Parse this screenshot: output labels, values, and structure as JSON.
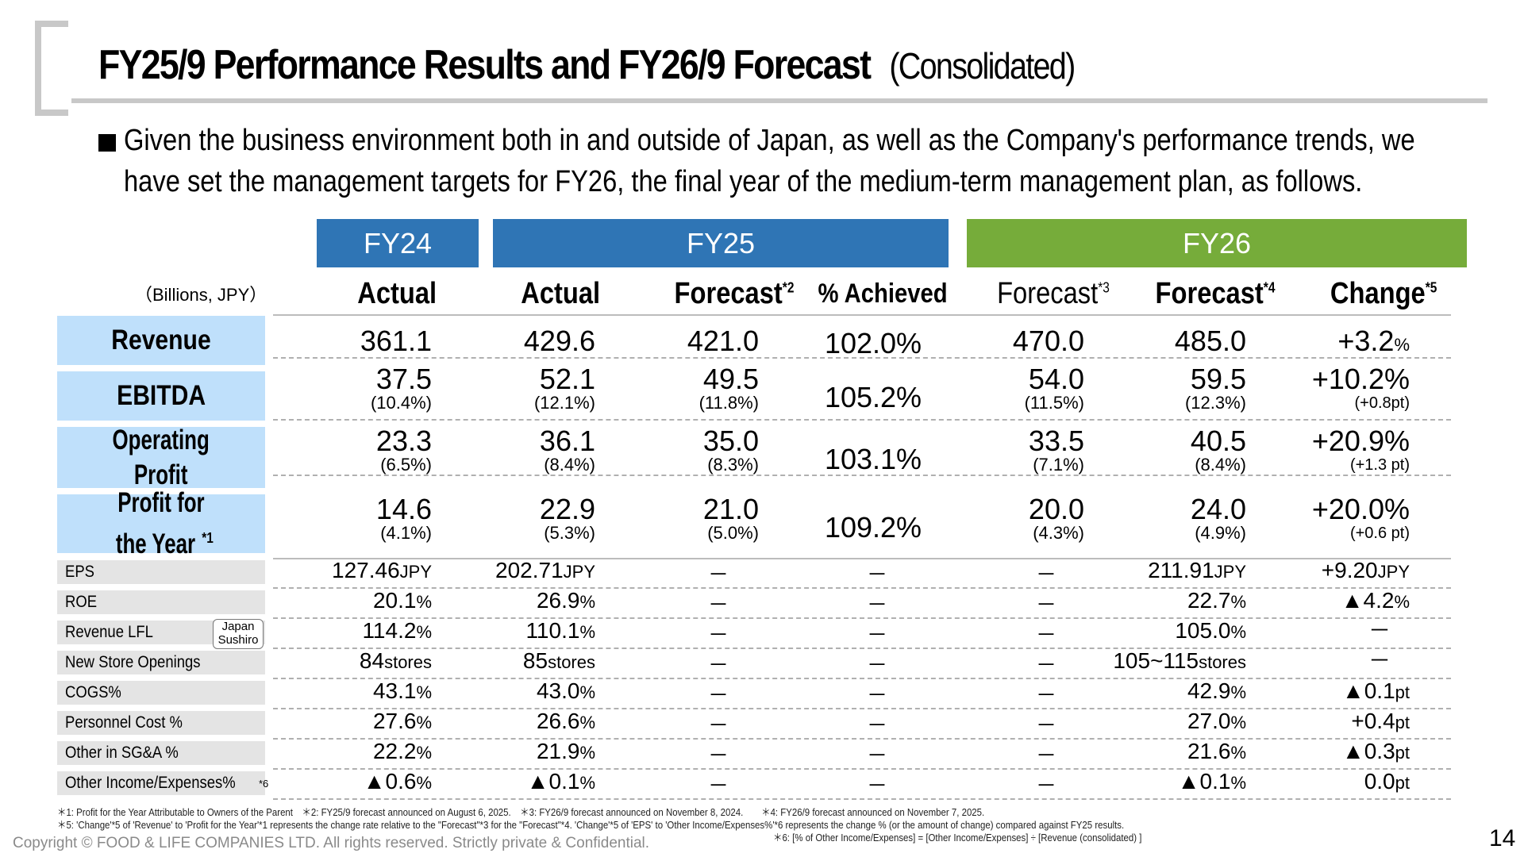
{
  "title": "FY25/9 Performance Results and FY26/9 Forecast",
  "title_sub": "(Consolidated)",
  "intro": {
    "line1": "Given the business environment both in and outside of Japan, as well as the Company's performance trends, we",
    "line2": "have set the management targets for FY26, the final year of the medium-term management plan, as follows."
  },
  "unit": "（Billions, JPY）",
  "colors": {
    "fy24": "#2f75b5",
    "fy25": "#2f75b5",
    "fy26": "#76ac3a",
    "label_main": "#bfe0fb",
    "label_sub": "#e4e4e4"
  },
  "year_headers": [
    "FY24",
    "FY25",
    "FY26"
  ],
  "col_headers": [
    {
      "label": "Actual",
      "sup": ""
    },
    {
      "label": "Actual",
      "sup": ""
    },
    {
      "label": "Forecast",
      "sup": "*2"
    },
    {
      "label": "% Achieved",
      "sup": ""
    },
    {
      "label": "Forecast",
      "sup": "*3"
    },
    {
      "label": "Forecast",
      "sup": "*4"
    },
    {
      "label": "Change",
      "sup": "*5"
    }
  ],
  "main_rows": [
    {
      "label": "Revenue",
      "values": [
        "361.1",
        "429.6",
        "421.0",
        "470.0",
        "485.0",
        "+3.2"
      ],
      "change_unit": "%",
      "pct": [
        "",
        "",
        "",
        "",
        "",
        ""
      ],
      "achieved": "102.0%"
    },
    {
      "label": "EBITDA",
      "values": [
        "37.5",
        "52.1",
        "49.5",
        "54.0",
        "59.5",
        "+10.2%"
      ],
      "pct": [
        "(10.4%)",
        "(12.1%)",
        "(11.8%)",
        "(11.5%)",
        "(12.3%)",
        "(+0.8pt)"
      ],
      "achieved": "105.2%"
    },
    {
      "label_line1": "Operating",
      "label_line2": "Profit",
      "values": [
        "23.3",
        "36.1",
        "35.0",
        "33.5",
        "40.5",
        "+20.9%"
      ],
      "pct": [
        "(6.5%)",
        "(8.4%)",
        "(8.3%)",
        "(7.1%)",
        "(8.4%)",
        "(+1.3 pt)"
      ],
      "achieved": "103.1%"
    },
    {
      "label_line1": "Profit for",
      "label_line2": "the Year",
      "label_sup": "*1",
      "values": [
        "14.6",
        "22.9",
        "21.0",
        "20.0",
        "24.0",
        "+20.0%"
      ],
      "pct": [
        "(4.1%)",
        "(5.3%)",
        "(5.0%)",
        "(4.3%)",
        "(4.9%)",
        "(+0.6 pt)"
      ],
      "achieved": "109.2%"
    }
  ],
  "sub_rows": [
    {
      "label": "EPS",
      "c1": "127.46",
      "u1": "JPY",
      "c2": "202.71",
      "u2": "JPY",
      "c5": "211.91",
      "u5": "JPY",
      "c6": "+9.20",
      "u6": "JPY"
    },
    {
      "label": "ROE",
      "c1": "20.1",
      "u1": "%",
      "c2": "26.9",
      "u2": "%",
      "c5": "22.7",
      "u5": "%",
      "c6": "▲4.2",
      "u6": "%"
    },
    {
      "label": "Revenue LFL",
      "badge_line1": "Japan",
      "badge_line2": "Sushiro",
      "c1": "114.2",
      "u1": "%",
      "c2": "110.1",
      "u2": "%",
      "c5": "105.0",
      "u5": "%",
      "c6": "－",
      "u6": ""
    },
    {
      "label": "New Store Openings",
      "c1": "84",
      "u1": "stores",
      "c2": "85",
      "u2": "stores",
      "c5": "105~115",
      "u5": "stores",
      "c6": "－",
      "u6": ""
    },
    {
      "label": "COGS%",
      "c1": "43.1",
      "u1": "%",
      "c2": "43.0",
      "u2": "%",
      "c5": "42.9",
      "u5": "%",
      "c6": "▲0.1",
      "u6": "pt"
    },
    {
      "label": "Personnel Cost %",
      "c1": "27.6",
      "u1": "%",
      "c2": "26.6",
      "u2": "%",
      "c5": "27.0",
      "u5": "%",
      "c6": "+0.4",
      "u6": "pt"
    },
    {
      "label": "Other in SG&A %",
      "c1": "22.2",
      "u1": "%",
      "c2": "21.9",
      "u2": "%",
      "c5": "21.6",
      "u5": "%",
      "c6": "▲0.3",
      "u6": "pt"
    },
    {
      "label": "Other Income/Expenses%",
      "label_sup": "*6",
      "c1": "▲0.6",
      "u1": "%",
      "c2": "▲0.1",
      "u2": "%",
      "c5": "▲0.1",
      "u5": "%",
      "c6": "0.0",
      "u6": "pt"
    }
  ],
  "dash": "－",
  "footnotes": {
    "line1": "＊1: Profit for the Year Attributable to Owners of the Parent　＊2:  FY25/9 forecast announced on August 6, 2025.　＊3:  FY26/9 forecast announced on November 8, 2024.　　＊4:  FY26/9 forecast announced on November 7, 2025.",
    "line2": "＊5: 'Change'*5 of 'Revenue' to 'Profit for the Year'*1 represents the change rate relative to the \"Forecast\"*3 for the \"Forecast\"*4.  'Change'*5 of 'EPS' to 'Other Income/Expenses%'*6 represents the change % (or the amount of change) compared against FY25 results.",
    "line3": "＊6:  [% of Other Income/Expenses] = [Other Income/Expenses] ÷ [Revenue (consolidated) ]"
  },
  "copyright": "Copyright © FOOD & LIFE COMPANIES LTD. All rights reserved. Strictly private & Confidential.",
  "page_number": "14"
}
